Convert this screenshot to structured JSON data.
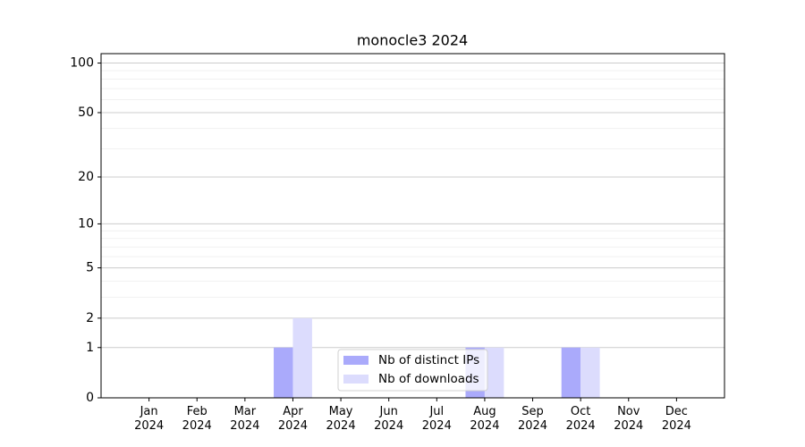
{
  "chart_data": {
    "type": "bar",
    "title": "monocle3 2024",
    "categories": [
      "Jan\n2024",
      "Feb\n2024",
      "Mar\n2024",
      "Apr\n2024",
      "May\n2024",
      "Jun\n2024",
      "Jul\n2024",
      "Aug\n2024",
      "Sep\n2024",
      "Oct\n2024",
      "Nov\n2024",
      "Dec\n2024"
    ],
    "series": [
      {
        "name": "Nb of distinct IPs",
        "color": "#aaaafb",
        "values": [
          0,
          0,
          0,
          1,
          0,
          0,
          0,
          1,
          0,
          1,
          0,
          0
        ]
      },
      {
        "name": "Nb of downloads",
        "color": "#dcdcfd",
        "values": [
          0,
          0,
          0,
          2,
          0,
          0,
          0,
          1,
          0,
          1,
          0,
          0
        ]
      }
    ],
    "yscale": "log1p",
    "ylim": [
      0,
      114
    ],
    "yticks": [
      0,
      1,
      2,
      5,
      10,
      20,
      50,
      100
    ],
    "minor_yticks": [
      3,
      4,
      6,
      7,
      8,
      9,
      30,
      40,
      60,
      70,
      80,
      90
    ],
    "grid": true,
    "legend": "lower center"
  }
}
